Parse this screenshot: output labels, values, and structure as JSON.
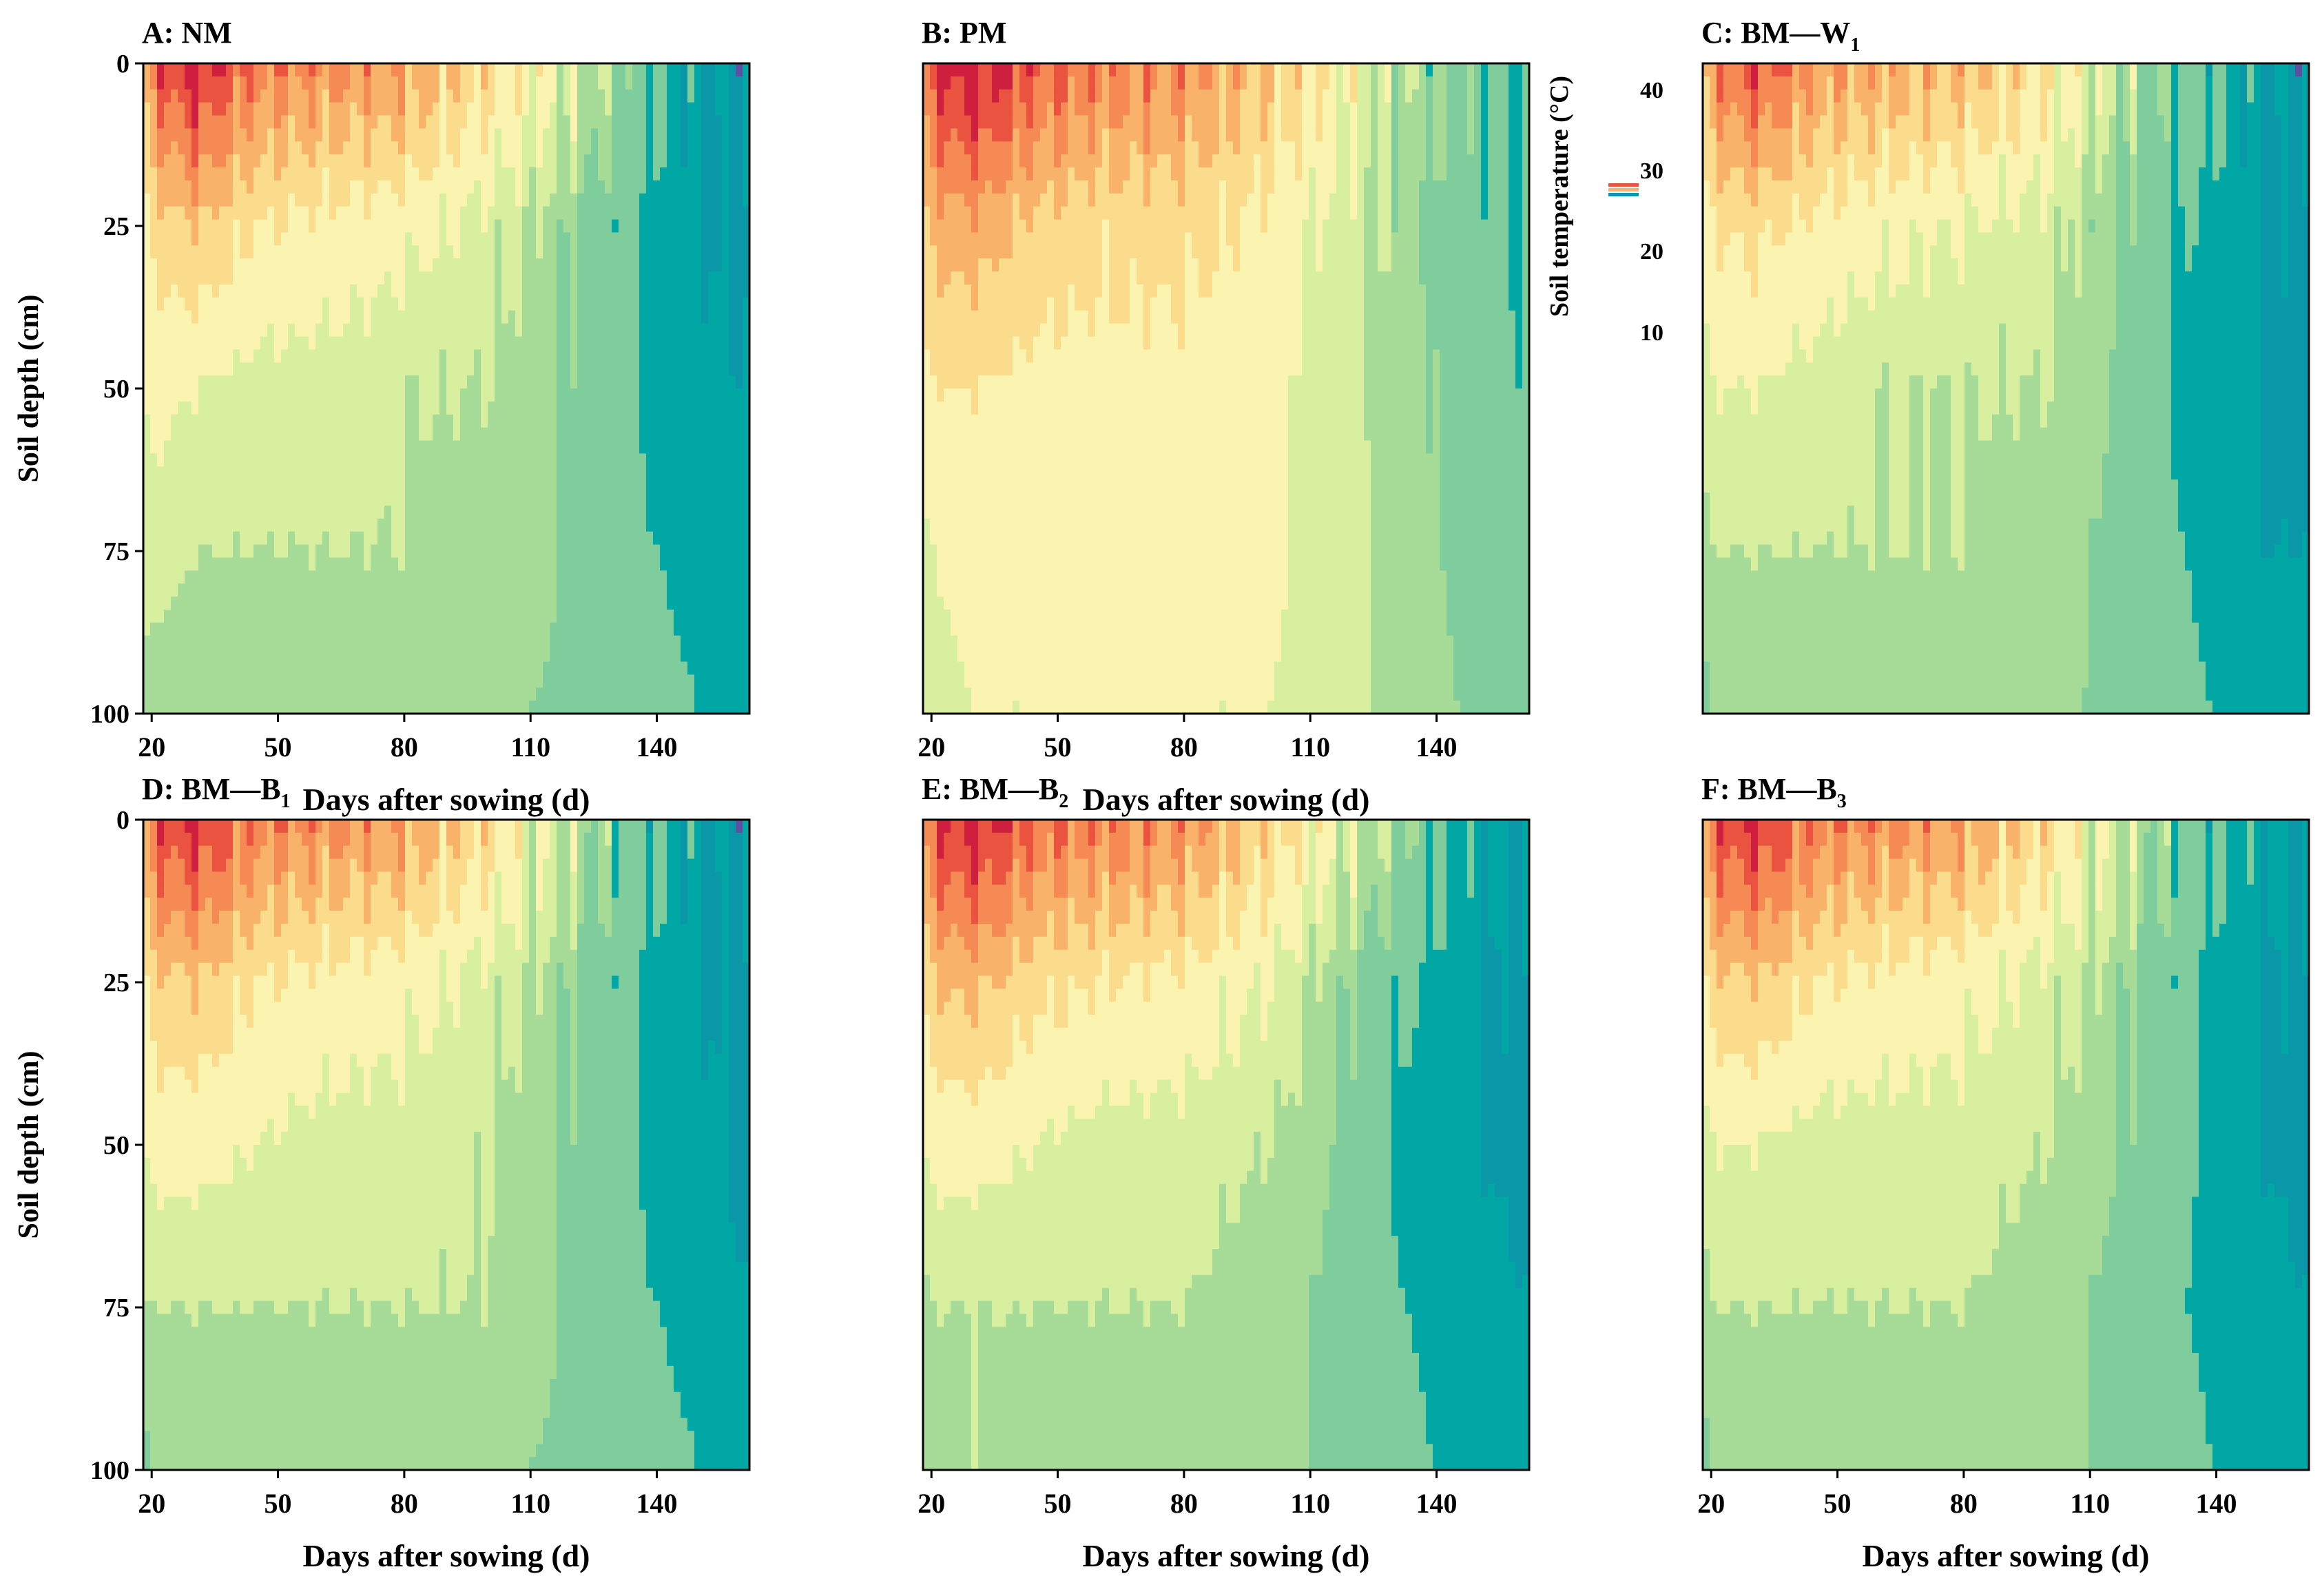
{
  "figure": {
    "colorbar_title": "Soil temperature (°C)",
    "colorbar_ticks": [
      "40",
      "30",
      "20",
      "10"
    ],
    "palette": [
      "#5e4fa2",
      "#0a98a8",
      "#00a7a4",
      "#7fcd9d",
      "#a7dc98",
      "#d9efa0",
      "#fbf3b0",
      "#fbdc8c",
      "#f9b26a",
      "#f68a54",
      "#e9533f",
      "#cf1f3f"
    ]
  },
  "chart_data": [
    {
      "type": "contour",
      "panel_label": "A: NM",
      "title": "A: NM",
      "subscript": "",
      "xlabel": "Days after sowing (d)",
      "ylabel": "Soil depth (cm)",
      "xticks": [
        "20",
        "50",
        "80",
        "110",
        "140"
      ],
      "yticks": [
        "0",
        "25",
        "50",
        "75",
        "100"
      ],
      "xlim": [
        18,
        162
      ],
      "ylim": [
        0,
        100
      ],
      "days": [
        18,
        20,
        30,
        45,
        60,
        80,
        100,
        110,
        125,
        140,
        150,
        162
      ],
      "depths": [
        0,
        25,
        50,
        75,
        100
      ],
      "values": [
        [
          30,
          35,
          40,
          34,
          33,
          32,
          27,
          25,
          21,
          16,
          13,
          12
        ],
        [
          24,
          27,
          29,
          26,
          25,
          24,
          22,
          21,
          18,
          15,
          13,
          12
        ],
        [
          23,
          24,
          23,
          22,
          22,
          21,
          21,
          20,
          18,
          15,
          14,
          13
        ],
        [
          22,
          22,
          21,
          21,
          21,
          21,
          20,
          20,
          18,
          16,
          15,
          14
        ],
        [
          20,
          20,
          20,
          20,
          20,
          20,
          20,
          19,
          18,
          17,
          16,
          15
        ]
      ]
    },
    {
      "type": "contour",
      "panel_label": "B: PM",
      "title": "B: PM",
      "subscript": "",
      "xlabel": "Days after sowing (d)",
      "ylabel": "",
      "xticks": [
        "20",
        "50",
        "80",
        "110",
        "140"
      ],
      "yticks": [],
      "xlim": [
        18,
        162
      ],
      "ylim": [
        0,
        100
      ],
      "days": [
        18,
        20,
        30,
        45,
        60,
        80,
        100,
        110,
        125,
        140,
        150,
        162
      ],
      "depths": [
        0,
        25,
        50,
        75,
        100
      ],
      "values": [
        [
          34,
          38,
          41,
          36,
          34,
          33,
          29,
          27,
          22,
          19,
          17,
          15
        ],
        [
          28,
          30,
          31,
          28,
          27,
          27,
          25,
          23,
          21,
          18,
          17,
          16
        ],
        [
          25,
          26,
          26,
          25,
          25,
          25,
          24,
          22,
          21,
          19,
          17,
          16
        ],
        [
          22,
          23,
          24,
          24,
          24,
          24,
          24,
          22,
          21,
          19,
          18,
          17
        ],
        [
          21,
          22,
          23,
          23,
          23,
          23,
          23,
          22,
          21,
          20,
          18,
          17
        ]
      ]
    },
    {
      "type": "contour",
      "panel_label": "C: BM—W1",
      "title": "C: BM—W",
      "subscript": "1",
      "xlabel": "",
      "ylabel": "",
      "xticks": [],
      "yticks": [],
      "xlim": [
        18,
        162
      ],
      "ylim": [
        0,
        100
      ],
      "days": [
        18,
        20,
        30,
        45,
        60,
        80,
        100,
        110,
        125,
        140,
        150,
        162
      ],
      "depths": [
        0,
        25,
        50,
        75,
        100
      ],
      "values": [
        [
          30,
          33,
          37,
          32,
          31,
          30,
          26,
          23,
          19,
          16,
          13,
          12
        ],
        [
          24,
          26,
          27,
          25,
          24,
          23,
          22,
          20,
          17,
          15,
          13,
          12
        ],
        [
          22,
          23,
          23,
          22,
          21,
          21,
          21,
          20,
          17,
          14,
          13,
          12
        ],
        [
          20,
          21,
          21,
          21,
          21,
          21,
          20,
          19,
          17,
          15,
          13,
          13
        ],
        [
          18,
          19,
          20,
          20,
          20,
          20,
          19,
          19,
          17,
          16,
          15,
          14
        ]
      ]
    },
    {
      "type": "contour",
      "panel_label": "D: BM—B1",
      "title": "D: BM—B",
      "subscript": "1",
      "xlabel": "Days after sowing (d)",
      "ylabel": "Soil depth (cm)",
      "xticks": [
        "20",
        "50",
        "80",
        "110",
        "140"
      ],
      "yticks": [
        "0",
        "25",
        "50",
        "75",
        "100"
      ],
      "xlim": [
        18,
        162
      ],
      "ylim": [
        0,
        100
      ],
      "days": [
        18,
        20,
        30,
        45,
        60,
        80,
        100,
        110,
        125,
        140,
        150,
        162
      ],
      "depths": [
        0,
        25,
        50,
        75,
        100
      ],
      "values": [
        [
          32,
          36,
          39,
          34,
          33,
          32,
          27,
          24,
          20,
          16,
          13,
          12
        ],
        [
          25,
          28,
          29,
          26,
          25,
          24,
          22,
          21,
          18,
          15,
          13,
          12
        ],
        [
          23,
          24,
          24,
          23,
          22,
          22,
          21,
          20,
          18,
          15,
          14,
          12
        ],
        [
          21,
          21,
          21,
          21,
          21,
          21,
          21,
          20,
          18,
          16,
          15,
          13
        ],
        [
          18,
          19,
          20,
          20,
          20,
          20,
          20,
          19,
          18,
          17,
          16,
          14
        ]
      ]
    },
    {
      "type": "contour",
      "panel_label": "E: BM—B2",
      "title": "E: BM—B",
      "subscript": "2",
      "xlabel": "Days after sowing (d)",
      "ylabel": "",
      "xticks": [
        "20",
        "50",
        "80",
        "110",
        "140"
      ],
      "yticks": [],
      "xlim": [
        18,
        162
      ],
      "ylim": [
        0,
        100
      ],
      "days": [
        18,
        20,
        30,
        45,
        60,
        80,
        100,
        110,
        125,
        140,
        150,
        162
      ],
      "depths": [
        0,
        25,
        50,
        75,
        100
      ],
      "values": [
        [
          33,
          37,
          40,
          35,
          34,
          33,
          28,
          25,
          21,
          17,
          14,
          13
        ],
        [
          26,
          29,
          30,
          27,
          26,
          25,
          23,
          21,
          18,
          15,
          13,
          12
        ],
        [
          23,
          24,
          24,
          23,
          22,
          22,
          21,
          20,
          17,
          14,
          13,
          12
        ],
        [
          20,
          21,
          21,
          21,
          21,
          21,
          20,
          19,
          17,
          15,
          14,
          13
        ],
        [
          19,
          20,
          21,
          20,
          20,
          20,
          20,
          19,
          18,
          16,
          15,
          14
        ]
      ]
    },
    {
      "type": "contour",
      "panel_label": "F: BM—B3",
      "title": "F: BM—B",
      "subscript": "3",
      "xlabel": "Days after sowing (d)",
      "ylabel": "",
      "xticks": [
        "20",
        "50",
        "80",
        "110",
        "140"
      ],
      "yticks": [],
      "xlim": [
        18,
        162
      ],
      "ylim": [
        0,
        100
      ],
      "days": [
        18,
        20,
        30,
        45,
        60,
        80,
        100,
        110,
        125,
        140,
        150,
        162
      ],
      "depths": [
        0,
        25,
        50,
        75,
        100
      ],
      "values": [
        [
          32,
          36,
          39,
          34,
          33,
          32,
          27,
          24,
          20,
          16,
          14,
          13
        ],
        [
          25,
          28,
          29,
          26,
          25,
          24,
          22,
          21,
          18,
          15,
          13,
          12
        ],
        [
          22,
          23,
          23,
          22,
          22,
          22,
          21,
          20,
          18,
          15,
          13,
          12
        ],
        [
          20,
          21,
          21,
          21,
          21,
          21,
          20,
          19,
          17,
          15,
          14,
          13
        ],
        [
          18,
          19,
          20,
          20,
          20,
          20,
          20,
          19,
          18,
          16,
          15,
          14
        ]
      ]
    }
  ]
}
